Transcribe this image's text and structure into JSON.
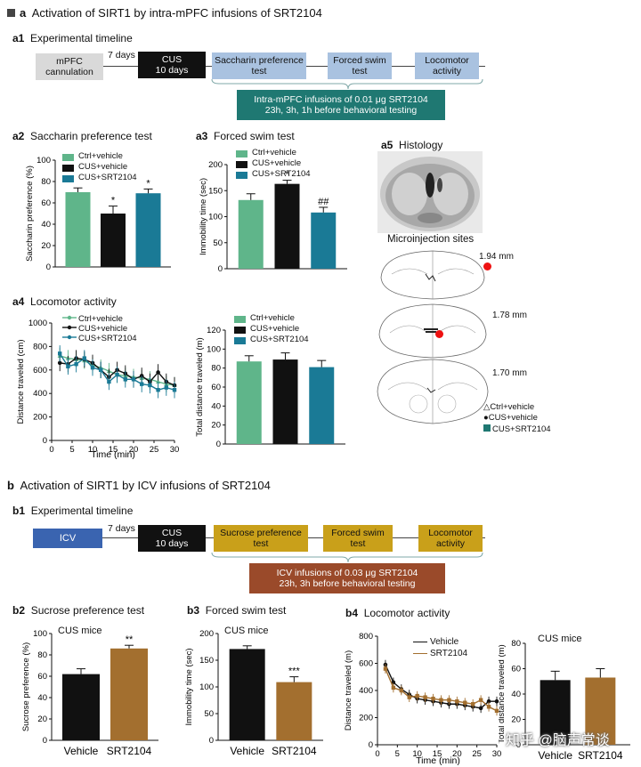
{
  "section_a": {
    "square_color": "#555555",
    "title": "Activation of SIRT1 by intra-mPFC infusions of SRT2104",
    "a1": {
      "label": "a1",
      "title": "Experimental timeline",
      "mpfc": "mPFC cannulation",
      "days7": "7 days",
      "cus_line1": "CUS",
      "cus_line2": "10 days",
      "sacc": "Saccharin preference test",
      "fst": "Forced swim test",
      "loco": "Locomotor activity",
      "infusion_line1": "Intra-mPFC infusions of 0.01 μg SRT2104",
      "infusion_line2": "23h, 3h, 1h  before behavioral testing"
    },
    "a2": {
      "label": "a2",
      "title": "Saccharin preference test"
    },
    "a3": {
      "label": "a3",
      "title": "Forced swim test"
    },
    "a4": {
      "label": "a4",
      "title": "Locomotor activity"
    },
    "a5": {
      "label": "a5",
      "title": "Histology",
      "sites_title": "Microinjection sites",
      "mm1": "1.94 mm",
      "mm2": "1.78 mm",
      "mm3": "1.70 mm",
      "legend": [
        "Ctrl+vehicle",
        "CUS+vehicle",
        "CUS+SRT2104"
      ]
    },
    "legend": [
      "Ctrl+vehicle",
      "CUS+vehicle",
      "CUS+SRT2104"
    ]
  },
  "section_b": {
    "title": "Activation of SIRT1 by ICV infusions of SRT2104",
    "b1": {
      "label": "b1",
      "title": "Experimental timeline",
      "icv": "ICV",
      "days7": "7 days",
      "cus_line1": "CUS",
      "cus_line2": "10 days",
      "sucrose": "Sucrose preference test",
      "fst": "Forced swim test",
      "loco": "Locomotor activity",
      "infusion_line1": "ICV infusions of 0.03 μg SRT2104",
      "infusion_line2": "23h, 3h before behavioral testing"
    },
    "b2": {
      "label": "b2",
      "title": "Sucrose preference test",
      "sub": "CUS mice"
    },
    "b3": {
      "label": "b3",
      "title": "Forced swim test",
      "sub": "CUS mice"
    },
    "b4": {
      "label": "b4",
      "title": "Locomotor activity",
      "sub": "CUS mice"
    },
    "legend": [
      "Vehicle",
      "SRT2104"
    ]
  },
  "watermark": "知乎 @脑声常谈",
  "colors": {
    "ctrl": "#5fb58a",
    "cus": "#111111",
    "srt_a": "#1a7a96",
    "vehicle": "#111111",
    "srt_b": "#a36f2f",
    "mpfc_box": "#d9d9d9",
    "cus_box": "#111111",
    "test_box_a": "#a9c2e0",
    "infusion_a": "#1f7872",
    "icv_box": "#3a64b0",
    "test_box_b": "#c9a01a",
    "infusion_b": "#9a4a2a"
  },
  "chart_data": [
    {
      "id": "a2",
      "type": "bar",
      "categories": [
        "Ctrl+vehicle",
        "CUS+vehicle",
        "CUS+SRT2104"
      ],
      "values": [
        70,
        50,
        69
      ],
      "errors": [
        4,
        7,
        4
      ],
      "significance": [
        "",
        "*",
        "*"
      ],
      "ylabel": "Saccharin preference (%)",
      "ylim": [
        0,
        100
      ],
      "yticks": [
        "0",
        "20",
        "40",
        "60",
        "80",
        "100"
      ]
    },
    {
      "id": "a3",
      "type": "bar",
      "categories": [
        "Ctrl+vehicle",
        "CUS+vehicle",
        "CUS+SRT2104"
      ],
      "values": [
        132,
        163,
        108
      ],
      "errors": [
        12,
        7,
        10
      ],
      "significance": [
        "",
        "*",
        "##"
      ],
      "ylabel": "Immobility time (sec)",
      "ylim": [
        0,
        200
      ],
      "yticks": [
        "0",
        "50",
        "100",
        "150",
        "200"
      ]
    },
    {
      "id": "a4-line",
      "type": "line",
      "x": [
        2,
        4,
        6,
        8,
        10,
        12,
        14,
        16,
        18,
        20,
        22,
        24,
        26,
        28,
        30
      ],
      "series": [
        {
          "name": "Ctrl+vehicle",
          "values": [
            720,
            700,
            690,
            680,
            640,
            620,
            590,
            560,
            550,
            540,
            530,
            520,
            500,
            480,
            470
          ]
        },
        {
          "name": "CUS+vehicle",
          "values": [
            660,
            650,
            700,
            690,
            660,
            600,
            540,
            600,
            570,
            520,
            550,
            500,
            580,
            500,
            470
          ]
        },
        {
          "name": "CUS+SRT2104",
          "values": [
            740,
            630,
            650,
            700,
            620,
            600,
            500,
            560,
            520,
            520,
            480,
            470,
            430,
            450,
            430
          ]
        }
      ],
      "xlabel": "Time (min)",
      "ylabel": "Distance traveled (cm)",
      "xlim": [
        0,
        30
      ],
      "ylim": [
        0,
        1000
      ],
      "xticks": [
        "0",
        "5",
        "10",
        "15",
        "20",
        "25",
        "30"
      ],
      "yticks": [
        "0",
        "200",
        "400",
        "600",
        "800",
        "1000"
      ]
    },
    {
      "id": "a4-bar",
      "type": "bar",
      "categories": [
        "Ctrl+vehicle",
        "CUS+vehicle",
        "CUS+SRT2104"
      ],
      "values": [
        87,
        89,
        81
      ],
      "errors": [
        6,
        7,
        7
      ],
      "ylabel": "Total distance traveled (m)",
      "ylim": [
        0,
        120
      ],
      "yticks": [
        "0",
        "20",
        "40",
        "60",
        "80",
        "100",
        "120"
      ]
    },
    {
      "id": "b2",
      "type": "bar",
      "categories": [
        "Vehicle",
        "SRT2104"
      ],
      "values": [
        62,
        86
      ],
      "errors": [
        5,
        3
      ],
      "significance": [
        "",
        "**"
      ],
      "ylabel": "Sucrose preference (%)",
      "ylim": [
        0,
        100
      ],
      "yticks": [
        "0",
        "20",
        "40",
        "60",
        "80",
        "100"
      ]
    },
    {
      "id": "b3",
      "type": "bar",
      "categories": [
        "Vehicle",
        "SRT2104"
      ],
      "values": [
        171,
        109
      ],
      "errors": [
        6,
        10
      ],
      "significance": [
        "",
        "***"
      ],
      "ylabel": "Immobility time (sec)",
      "ylim": [
        0,
        200
      ],
      "yticks": [
        "0",
        "50",
        "100",
        "150",
        "200"
      ]
    },
    {
      "id": "b4-line",
      "type": "line",
      "x": [
        2,
        4,
        6,
        8,
        10,
        12,
        14,
        16,
        18,
        20,
        22,
        24,
        26,
        28,
        30
      ],
      "series": [
        {
          "name": "Vehicle",
          "values": [
            590,
            460,
            410,
            370,
            340,
            330,
            320,
            310,
            300,
            300,
            290,
            280,
            270,
            320,
            320
          ]
        },
        {
          "name": "SRT2104",
          "values": [
            560,
            420,
            400,
            350,
            360,
            350,
            340,
            330,
            330,
            320,
            310,
            300,
            330,
            280,
            250
          ]
        }
      ],
      "xlabel": "Time (min)",
      "ylabel": "Distance traveled (m)",
      "xlim": [
        0,
        30
      ],
      "ylim": [
        0,
        800
      ],
      "xticks": [
        "0",
        "5",
        "10",
        "15",
        "20",
        "25",
        "30"
      ],
      "yticks": [
        "0",
        "200",
        "400",
        "600",
        "800"
      ]
    },
    {
      "id": "b4-bar",
      "type": "bar",
      "categories": [
        "Vehicle",
        "SRT2104"
      ],
      "values": [
        51,
        53
      ],
      "errors": [
        7,
        7
      ],
      "ylabel": "Total distance traveled (m)",
      "ylim": [
        0,
        80
      ],
      "yticks": [
        "0",
        "20",
        "40",
        "60",
        "80"
      ]
    }
  ]
}
